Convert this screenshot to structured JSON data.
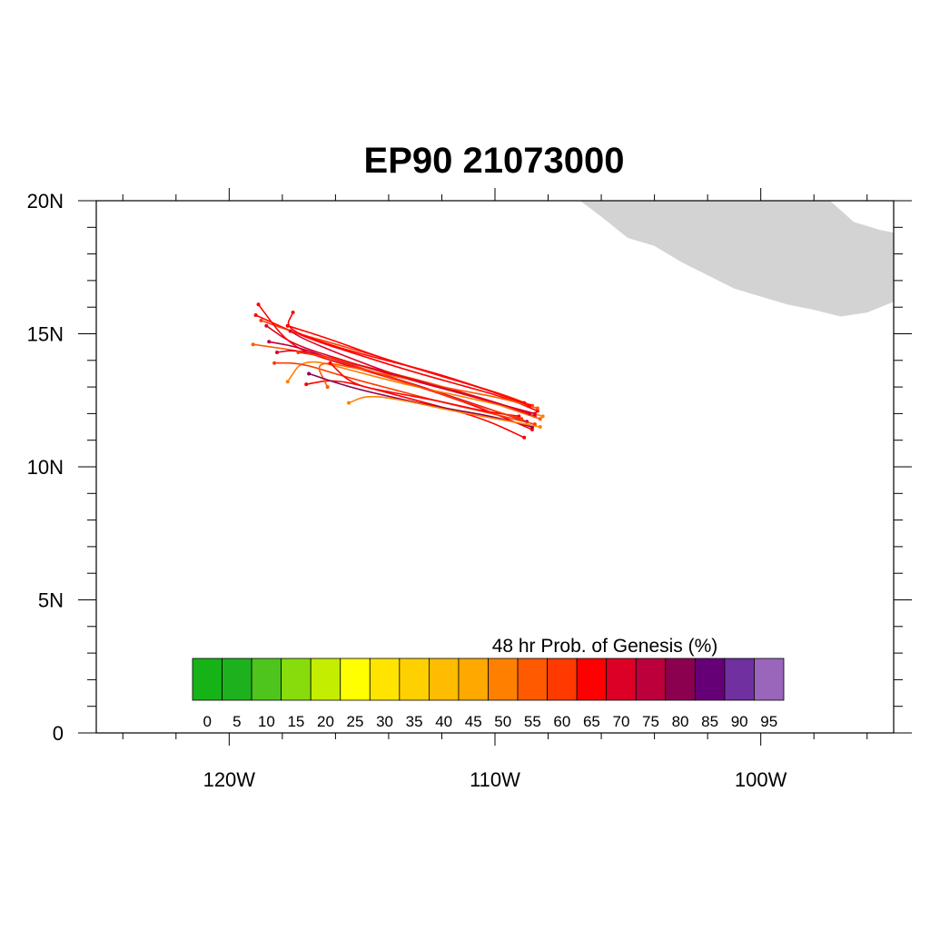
{
  "title": "EP90 21073000",
  "map": {
    "lon_range": [
      -125,
      -95
    ],
    "lat_range": [
      0,
      20
    ],
    "land_color": "#d3d3d3",
    "lat_ticks": [
      {
        "value": 20,
        "label": "20N"
      },
      {
        "value": 15,
        "label": "15N"
      },
      {
        "value": 10,
        "label": "10N"
      },
      {
        "value": 5,
        "label": "5N"
      },
      {
        "value": 0,
        "label": "0"
      }
    ],
    "lon_ticks": [
      {
        "value": -120,
        "label": "120W"
      },
      {
        "value": -110,
        "label": "110W"
      },
      {
        "value": -100,
        "label": "100W"
      }
    ],
    "coastline": [
      [
        -99.6,
        20
      ],
      [
        -97.4,
        20
      ],
      [
        -96.5,
        19.2
      ],
      [
        -95.5,
        18.9
      ],
      [
        -95,
        18.8
      ],
      [
        -95,
        16.2
      ],
      [
        -95.5,
        16.0
      ],
      [
        -96,
        15.8
      ],
      [
        -97,
        15.65
      ],
      [
        -98,
        15.9
      ],
      [
        -99,
        16.1
      ],
      [
        -100,
        16.4
      ],
      [
        -101,
        16.7
      ],
      [
        -102,
        17.2
      ],
      [
        -103,
        17.7
      ],
      [
        -104,
        18.3
      ],
      [
        -105,
        18.6
      ],
      [
        -106,
        19.4
      ],
      [
        -106.8,
        20
      ]
    ]
  },
  "colorbar": {
    "title": "48 hr Prob. of Genesis (%)",
    "labels": [
      "0",
      "5",
      "10",
      "15",
      "20",
      "25",
      "30",
      "35",
      "40",
      "45",
      "50",
      "55",
      "60",
      "65",
      "70",
      "75",
      "80",
      "85",
      "90",
      "95"
    ],
    "colors": [
      "#16b316",
      "#1db21d",
      "#4ec51c",
      "#88dc0c",
      "#c3ee00",
      "#ffff00",
      "#ffe400",
      "#ffd000",
      "#ffbc00",
      "#ffa800",
      "#ff8000",
      "#ff5a00",
      "#ff3a00",
      "#ff0000",
      "#dd0026",
      "#bb003c",
      "#8c0050",
      "#660077",
      "#7030a0",
      "#9966bb"
    ]
  },
  "tracks": [
    {
      "color": "#ff0000",
      "points": [
        [
          -108.4,
          12.1
        ],
        [
          -109.6,
          12.6
        ],
        [
          -111.4,
          13.1
        ],
        [
          -113.2,
          13.6
        ],
        [
          -115.1,
          14.2
        ],
        [
          -117.0,
          14.8
        ],
        [
          -119.0,
          15.7
        ]
      ]
    },
    {
      "color": "#ff3a00",
      "points": [
        [
          -108.6,
          12.3
        ],
        [
          -109.9,
          12.8
        ],
        [
          -111.7,
          13.3
        ],
        [
          -113.6,
          13.9
        ],
        [
          -115.6,
          14.5
        ],
        [
          -117.4,
          15.0
        ],
        [
          -118.8,
          15.5
        ]
      ]
    },
    {
      "color": "#dd0026",
      "points": [
        [
          -108.5,
          11.9
        ],
        [
          -110.0,
          12.4
        ],
        [
          -111.8,
          12.9
        ],
        [
          -113.7,
          13.4
        ],
        [
          -115.7,
          14.0
        ],
        [
          -117.6,
          14.6
        ],
        [
          -118.6,
          15.3
        ]
      ]
    },
    {
      "color": "#ff5a00",
      "points": [
        [
          -108.3,
          11.8
        ],
        [
          -109.5,
          12.2
        ],
        [
          -111.2,
          12.8
        ],
        [
          -113.0,
          13.3
        ],
        [
          -115.0,
          13.8
        ],
        [
          -117.0,
          14.3
        ],
        [
          -119.1,
          14.6
        ]
      ]
    },
    {
      "color": "#ff0000",
      "points": [
        [
          -108.6,
          11.4
        ],
        [
          -110.0,
          12.0
        ],
        [
          -111.9,
          12.7
        ],
        [
          -113.8,
          13.3
        ],
        [
          -115.9,
          13.9
        ],
        [
          -117.7,
          14.5
        ],
        [
          -118.9,
          16.1
        ]
      ]
    },
    {
      "color": "#bb003c",
      "points": [
        [
          -108.8,
          11.7
        ],
        [
          -110.3,
          12.2
        ],
        [
          -112.1,
          12.8
        ],
        [
          -114.0,
          13.4
        ],
        [
          -116.0,
          14.0
        ],
        [
          -117.4,
          14.5
        ],
        [
          -118.5,
          14.7
        ]
      ]
    },
    {
      "color": "#ff8000",
      "points": [
        [
          -108.2,
          11.9
        ],
        [
          -109.7,
          12.3
        ],
        [
          -111.5,
          12.7
        ],
        [
          -113.4,
          13.1
        ],
        [
          -115.3,
          13.6
        ],
        [
          -117.2,
          14.1
        ],
        [
          -117.8,
          13.2
        ]
      ]
    },
    {
      "color": "#ff0000",
      "points": [
        [
          -108.9,
          12.4
        ],
        [
          -110.6,
          13.0
        ],
        [
          -112.5,
          13.6
        ],
        [
          -114.5,
          14.1
        ],
        [
          -116.3,
          14.6
        ],
        [
          -117.9,
          15.2
        ],
        [
          -117.6,
          15.8
        ]
      ]
    },
    {
      "color": "#dd0026",
      "points": [
        [
          -108.7,
          12.0
        ],
        [
          -110.2,
          12.5
        ],
        [
          -112.0,
          13.0
        ],
        [
          -113.9,
          13.5
        ],
        [
          -115.8,
          14.0
        ],
        [
          -117.5,
          14.4
        ],
        [
          -118.2,
          14.3
        ]
      ]
    },
    {
      "color": "#ff3a00",
      "points": [
        [
          -108.5,
          11.6
        ],
        [
          -110.1,
          12.0
        ],
        [
          -111.9,
          12.4
        ],
        [
          -113.8,
          12.9
        ],
        [
          -115.7,
          13.4
        ],
        [
          -117.3,
          13.9
        ],
        [
          -118.3,
          13.9
        ]
      ]
    },
    {
      "color": "#ff0000",
      "points": [
        [
          -108.9,
          11.1
        ],
        [
          -110.4,
          11.8
        ],
        [
          -112.2,
          12.3
        ],
        [
          -114.1,
          12.8
        ],
        [
          -116.0,
          13.3
        ],
        [
          -117.1,
          13.1
        ]
      ]
    },
    {
      "color": "#ff5a00",
      "points": [
        [
          -108.4,
          12.2
        ],
        [
          -109.8,
          12.6
        ],
        [
          -111.5,
          12.9
        ],
        [
          -113.3,
          13.3
        ],
        [
          -115.2,
          13.7
        ],
        [
          -116.8,
          14.0
        ],
        [
          -116.3,
          13.0
        ]
      ]
    },
    {
      "color": "#8c0050",
      "points": [
        [
          -108.6,
          11.5
        ],
        [
          -110.1,
          11.9
        ],
        [
          -111.9,
          12.2
        ],
        [
          -113.8,
          12.6
        ],
        [
          -115.5,
          13.0
        ],
        [
          -117.0,
          13.5
        ]
      ]
    },
    {
      "color": "#ff0000",
      "points": [
        [
          -108.7,
          12.3
        ],
        [
          -110.3,
          12.9
        ],
        [
          -112.3,
          13.5
        ],
        [
          -114.3,
          14.1
        ],
        [
          -116.2,
          14.8
        ],
        [
          -117.8,
          15.3
        ]
      ]
    },
    {
      "color": "#ff8000",
      "points": [
        [
          -108.3,
          11.5
        ],
        [
          -109.9,
          11.8
        ],
        [
          -111.6,
          12.1
        ],
        [
          -113.4,
          12.5
        ],
        [
          -114.8,
          12.7
        ],
        [
          -115.5,
          12.4
        ]
      ]
    },
    {
      "color": "#ff0000",
      "points": [
        [
          -109.1,
          11.9
        ],
        [
          -110.5,
          12.1
        ],
        [
          -112.2,
          12.5
        ],
        [
          -113.9,
          12.8
        ],
        [
          -115.4,
          13.1
        ],
        [
          -116.2,
          13.9
        ]
      ]
    },
    {
      "color": "#dd0026",
      "points": [
        [
          -108.5,
          12.0
        ],
        [
          -110.0,
          12.4
        ],
        [
          -111.7,
          12.9
        ],
        [
          -113.6,
          13.4
        ],
        [
          -115.5,
          14.1
        ],
        [
          -117.2,
          14.8
        ],
        [
          -117.7,
          15.1
        ]
      ]
    },
    {
      "color": "#ff3a00",
      "points": [
        [
          -109.0,
          11.8
        ],
        [
          -110.7,
          12.3
        ],
        [
          -112.5,
          12.9
        ],
        [
          -114.4,
          13.5
        ],
        [
          -116.1,
          14.1
        ],
        [
          -117.4,
          14.3
        ]
      ]
    }
  ]
}
